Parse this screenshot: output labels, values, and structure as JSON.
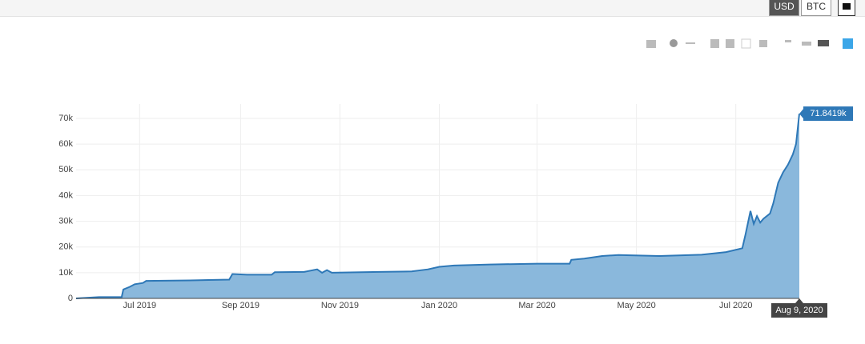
{
  "ui": {
    "buttons": [
      "USD",
      "BTC"
    ]
  },
  "chart_data": {
    "type": "area",
    "color": "#2e78b7",
    "fill": "#8ab8dc",
    "grid": true,
    "x": [
      "2019-05-23",
      "2019-06-06",
      "2019-06-20",
      "2019-06-21",
      "2019-06-25",
      "2019-06-28",
      "2019-07-03",
      "2019-07-05",
      "2019-08-01",
      "2019-08-25",
      "2019-08-27",
      "2019-09-05",
      "2019-09-20",
      "2019-09-22",
      "2019-10-10",
      "2019-10-18",
      "2019-10-21",
      "2019-10-24",
      "2019-10-27",
      "2019-11-25",
      "2019-12-15",
      "2019-12-25",
      "2020-01-01",
      "2020-01-10",
      "2020-02-01",
      "2020-03-01",
      "2020-03-21",
      "2020-03-22",
      "2020-03-30",
      "2020-04-10",
      "2020-04-20",
      "2020-05-15",
      "2020-06-10",
      "2020-06-25",
      "2020-07-05",
      "2020-07-07",
      "2020-07-10",
      "2020-07-12",
      "2020-07-14",
      "2020-07-16",
      "2020-07-18",
      "2020-07-22",
      "2020-07-24",
      "2020-07-27",
      "2020-07-30",
      "2020-08-02",
      "2020-08-05",
      "2020-08-07",
      "2020-08-09"
    ],
    "values": [
      0,
      500,
      500,
      3500,
      4500,
      5500,
      6000,
      6800,
      7000,
      7300,
      9500,
      9200,
      9200,
      10200,
      10300,
      11300,
      10000,
      11000,
      10000,
      10300,
      10500,
      11300,
      12300,
      12800,
      13200,
      13500,
      13500,
      15000,
      15500,
      16500,
      16900,
      16500,
      17000,
      18000,
      19500,
      25000,
      34000,
      29000,
      32000,
      29500,
      31000,
      33000,
      37000,
      45000,
      49000,
      52000,
      56000,
      60000,
      71841.9
    ],
    "xlim": [
      "2019-05-23",
      "2020-08-09"
    ],
    "xticks": [
      {
        "value": "2019-07-01",
        "label": "Jul 2019"
      },
      {
        "value": "2019-09-01",
        "label": "Sep 2019"
      },
      {
        "value": "2019-11-01",
        "label": "Nov 2019"
      },
      {
        "value": "2020-01-01",
        "label": "Jan 2020"
      },
      {
        "value": "2020-03-01",
        "label": "Mar 2020"
      },
      {
        "value": "2020-05-01",
        "label": "May 2020"
      },
      {
        "value": "2020-07-01",
        "label": "Jul 2020"
      }
    ],
    "ylim": [
      0,
      75600
    ],
    "yticks": [
      0,
      {
        "value": 10000,
        "label": "10k"
      },
      {
        "value": 20000,
        "label": "20k"
      },
      {
        "value": 30000,
        "label": "30k"
      },
      {
        "value": 40000,
        "label": "40k"
      },
      {
        "value": 50000,
        "label": "50k"
      },
      {
        "value": 60000,
        "label": "60k"
      },
      {
        "value": 70000,
        "label": "70k"
      }
    ],
    "hover": {
      "x": "Aug 9, 2020",
      "y": "71.8419k"
    }
  }
}
